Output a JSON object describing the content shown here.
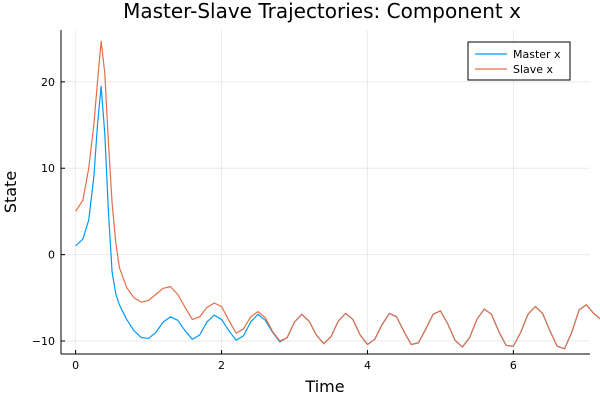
{
  "chart_data": {
    "type": "line",
    "title": "Master-Slave Trajectories: Component x",
    "xlabel": "Time",
    "ylabel": "State",
    "xlim": [
      -0.2,
      7.05
    ],
    "ylim": [
      -11.5,
      26.0
    ],
    "xticks": [
      0,
      2,
      4,
      6
    ],
    "yticks": [
      -10,
      0,
      10,
      20
    ],
    "grid": true,
    "legend_position": "top-right",
    "series": [
      {
        "name": "Master x",
        "color": "#009AF9",
        "points": [
          [
            0,
            1
          ],
          [
            0.1,
            1.8
          ],
          [
            0.18,
            4
          ],
          [
            0.25,
            9
          ],
          [
            0.3,
            15
          ],
          [
            0.35,
            19.5
          ],
          [
            0.4,
            14
          ],
          [
            0.45,
            5
          ],
          [
            0.5,
            -2
          ],
          [
            0.55,
            -4.5
          ],
          [
            0.6,
            -5.8
          ],
          [
            0.7,
            -7.5
          ],
          [
            0.8,
            -8.8
          ],
          [
            0.9,
            -9.6
          ],
          [
            1,
            -9.7
          ],
          [
            1.1,
            -9
          ],
          [
            1.2,
            -7.8
          ],
          [
            1.3,
            -7.2
          ],
          [
            1.4,
            -7.6
          ],
          [
            1.5,
            -8.8
          ],
          [
            1.6,
            -9.8
          ],
          [
            1.7,
            -9.3
          ],
          [
            1.8,
            -7.8
          ],
          [
            1.9,
            -7
          ],
          [
            2,
            -7.5
          ],
          [
            2.1,
            -8.8
          ],
          [
            2.2,
            -9.9
          ],
          [
            2.3,
            -9.4
          ],
          [
            2.4,
            -7.8
          ],
          [
            2.5,
            -6.9
          ],
          [
            2.6,
            -7.6
          ],
          [
            2.7,
            -9
          ],
          [
            2.8,
            -10.1
          ],
          [
            2.9,
            -9.6
          ],
          [
            3,
            -7.8
          ],
          [
            3.1,
            -6.9
          ],
          [
            3.2,
            -7.7
          ],
          [
            3.3,
            -9.3
          ],
          [
            3.4,
            -10.3
          ],
          [
            3.5,
            -9.5
          ],
          [
            3.6,
            -7.7
          ],
          [
            3.7,
            -6.8
          ],
          [
            3.8,
            -7.5
          ],
          [
            3.9,
            -9.3
          ],
          [
            4,
            -10.4
          ],
          [
            4.1,
            -9.8
          ],
          [
            4.2,
            -8.1
          ],
          [
            4.3,
            -6.8
          ],
          [
            4.4,
            -7.2
          ],
          [
            4.5,
            -8.9
          ],
          [
            4.6,
            -10.4
          ],
          [
            4.7,
            -10.2
          ],
          [
            4.8,
            -8.6
          ],
          [
            4.9,
            -6.9
          ],
          [
            5,
            -6.5
          ],
          [
            5.1,
            -8
          ],
          [
            5.2,
            -9.9
          ],
          [
            5.3,
            -10.7
          ],
          [
            5.4,
            -9.6
          ],
          [
            5.5,
            -7.5
          ],
          [
            5.6,
            -6.3
          ],
          [
            5.7,
            -6.9
          ],
          [
            5.8,
            -8.9
          ],
          [
            5.9,
            -10.5
          ],
          [
            6,
            -10.6
          ],
          [
            6.1,
            -9
          ],
          [
            6.2,
            -6.9
          ],
          [
            6.3,
            -6
          ],
          [
            6.4,
            -6.8
          ],
          [
            6.5,
            -8.8
          ],
          [
            6.6,
            -10.6
          ],
          [
            6.7,
            -10.9
          ],
          [
            6.8,
            -9
          ],
          [
            6.9,
            -6.4
          ],
          [
            7,
            -5.8
          ],
          [
            7.1,
            -6.8
          ],
          [
            7.2,
            -7.5
          ]
        ]
      },
      {
        "name": "Slave x",
        "color": "#E26F46",
        "points": [
          [
            0,
            5
          ],
          [
            0.1,
            6.3
          ],
          [
            0.18,
            10
          ],
          [
            0.25,
            15
          ],
          [
            0.3,
            20
          ],
          [
            0.35,
            24.7
          ],
          [
            0.4,
            21
          ],
          [
            0.45,
            13
          ],
          [
            0.5,
            6
          ],
          [
            0.55,
            1.5
          ],
          [
            0.6,
            -1.5
          ],
          [
            0.7,
            -3.8
          ],
          [
            0.8,
            -5
          ],
          [
            0.9,
            -5.5
          ],
          [
            1,
            -5.3
          ],
          [
            1.1,
            -4.6
          ],
          [
            1.2,
            -3.9
          ],
          [
            1.3,
            -3.7
          ],
          [
            1.4,
            -4.6
          ],
          [
            1.5,
            -6.1
          ],
          [
            1.6,
            -7.5
          ],
          [
            1.7,
            -7.2
          ],
          [
            1.8,
            -6.1
          ],
          [
            1.9,
            -5.6
          ],
          [
            2,
            -6
          ],
          [
            2.1,
            -7.6
          ],
          [
            2.2,
            -9.1
          ],
          [
            2.3,
            -8.6
          ],
          [
            2.4,
            -7.2
          ],
          [
            2.5,
            -6.6
          ],
          [
            2.6,
            -7.3
          ],
          [
            2.7,
            -8.9
          ],
          [
            2.8,
            -10
          ],
          [
            2.9,
            -9.6
          ],
          [
            3,
            -7.8
          ],
          [
            3.1,
            -6.9
          ],
          [
            3.2,
            -7.7
          ],
          [
            3.3,
            -9.3
          ],
          [
            3.4,
            -10.3
          ],
          [
            3.5,
            -9.5
          ],
          [
            3.6,
            -7.7
          ],
          [
            3.7,
            -6.8
          ],
          [
            3.8,
            -7.5
          ],
          [
            3.9,
            -9.3
          ],
          [
            4,
            -10.4
          ],
          [
            4.1,
            -9.8
          ],
          [
            4.2,
            -8.1
          ],
          [
            4.3,
            -6.8
          ],
          [
            4.4,
            -7.2
          ],
          [
            4.5,
            -8.9
          ],
          [
            4.6,
            -10.4
          ],
          [
            4.7,
            -10.2
          ],
          [
            4.8,
            -8.6
          ],
          [
            4.9,
            -6.9
          ],
          [
            5,
            -6.5
          ],
          [
            5.1,
            -8
          ],
          [
            5.2,
            -9.9
          ],
          [
            5.3,
            -10.7
          ],
          [
            5.4,
            -9.6
          ],
          [
            5.5,
            -7.5
          ],
          [
            5.6,
            -6.3
          ],
          [
            5.7,
            -6.9
          ],
          [
            5.8,
            -8.9
          ],
          [
            5.9,
            -10.5
          ],
          [
            6,
            -10.6
          ],
          [
            6.1,
            -9
          ],
          [
            6.2,
            -6.9
          ],
          [
            6.3,
            -6
          ],
          [
            6.4,
            -6.8
          ],
          [
            6.5,
            -8.8
          ],
          [
            6.6,
            -10.6
          ],
          [
            6.7,
            -10.9
          ],
          [
            6.8,
            -9
          ],
          [
            6.9,
            -6.4
          ],
          [
            7,
            -5.8
          ],
          [
            7.1,
            -6.8
          ],
          [
            7.2,
            -7.5
          ]
        ]
      }
    ]
  }
}
